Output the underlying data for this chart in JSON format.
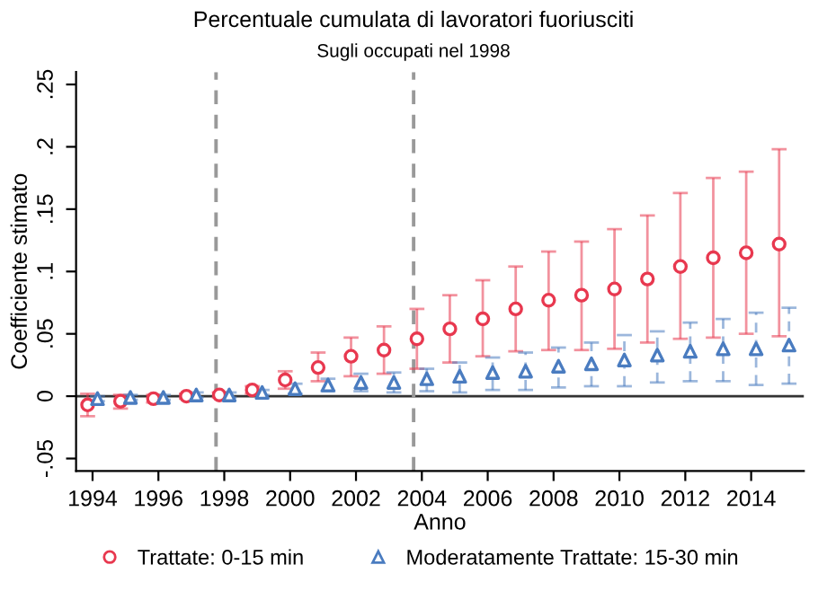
{
  "chart_data": {
    "type": "scatter",
    "title": "Percentuale cumulata di lavoratori fuoriusciti",
    "subtitle": "Sugli occupati nel 1998",
    "xlabel": "Anno",
    "ylabel": "Coefficiente stimato",
    "x": [
      1993.85,
      1994.85,
      1995.85,
      1996.85,
      1997.85,
      1998.85,
      1999.85,
      2000.85,
      2001.85,
      2002.85,
      2003.85,
      2004.85,
      2005.85,
      2006.85,
      2007.85,
      2008.85,
      2009.85,
      2010.85,
      2011.85,
      2012.85,
      2013.85,
      2014.85
    ],
    "series": [
      {
        "name": "Trattate: 0-15 min",
        "color": "#e8384f",
        "marker": "circle",
        "line_style": "solid",
        "values": [
          -0.007,
          -0.004,
          -0.002,
          0.0,
          0.001,
          0.005,
          0.013,
          0.023,
          0.032,
          0.037,
          0.046,
          0.054,
          0.062,
          0.07,
          0.077,
          0.081,
          0.086,
          0.094,
          0.104,
          0.111,
          0.115,
          0.122
        ],
        "errors": [
          [
            -0.016,
            0.002
          ],
          [
            -0.01,
            0.001
          ],
          [
            -0.005,
            0.001
          ],
          [
            -0.002,
            0.002
          ],
          [
            -0.001,
            0.003
          ],
          [
            0.002,
            0.008
          ],
          [
            0.006,
            0.02
          ],
          [
            0.012,
            0.035
          ],
          [
            0.016,
            0.047
          ],
          [
            0.018,
            0.056
          ],
          [
            0.022,
            0.07
          ],
          [
            0.027,
            0.081
          ],
          [
            0.032,
            0.093
          ],
          [
            0.036,
            0.104
          ],
          [
            0.037,
            0.116
          ],
          [
            0.037,
            0.124
          ],
          [
            0.038,
            0.134
          ],
          [
            0.043,
            0.145
          ],
          [
            0.046,
            0.163
          ],
          [
            0.047,
            0.175
          ],
          [
            0.05,
            0.18
          ],
          [
            0.048,
            0.198
          ]
        ]
      },
      {
        "name": "Moderatamente Trattate: 15-30 min",
        "color": "#4a7cc0",
        "x": [
          1994.15,
          1995.15,
          1996.15,
          1997.15,
          1998.15,
          1999.15,
          2000.15,
          2001.15,
          2002.15,
          2003.15,
          2004.15,
          2005.15,
          2006.15,
          2007.15,
          2008.15,
          2009.15,
          2010.15,
          2011.15,
          2012.15,
          2013.15,
          2014.15,
          2015.15
        ],
        "marker": "triangle",
        "line_style": "dashed",
        "values": [
          -0.002,
          -0.001,
          -0.001,
          0.001,
          0.001,
          0.003,
          0.006,
          0.009,
          0.011,
          0.011,
          0.014,
          0.016,
          0.019,
          0.02,
          0.024,
          0.026,
          0.029,
          0.033,
          0.036,
          0.038,
          0.038,
          0.041
        ],
        "errors": [
          [
            -0.004,
            0.0
          ],
          [
            -0.003,
            0.001
          ],
          [
            -0.003,
            0.001
          ],
          [
            -0.001,
            0.003
          ],
          [
            -0.001,
            0.003
          ],
          [
            0.001,
            0.005
          ],
          [
            0.002,
            0.01
          ],
          [
            0.004,
            0.014
          ],
          [
            0.004,
            0.018
          ],
          [
            0.003,
            0.019
          ],
          [
            0.004,
            0.022
          ],
          [
            0.003,
            0.027
          ],
          [
            0.005,
            0.031
          ],
          [
            0.005,
            0.035
          ],
          [
            0.007,
            0.039
          ],
          [
            0.008,
            0.043
          ],
          [
            0.008,
            0.049
          ],
          [
            0.011,
            0.052
          ],
          [
            0.012,
            0.059
          ],
          [
            0.012,
            0.062
          ],
          [
            0.009,
            0.067
          ],
          [
            0.01,
            0.071
          ]
        ]
      }
    ],
    "xlim": [
      1993.5,
      2015.6
    ],
    "xticks": [
      1994,
      1996,
      1998,
      2000,
      2002,
      2004,
      2006,
      2008,
      2010,
      2012,
      2014
    ],
    "ylim": [
      -0.06,
      0.26
    ],
    "yticks": [
      {
        "value": -0.05,
        "label": "-.05"
      },
      {
        "value": 0,
        "label": "0"
      },
      {
        "value": 0.05,
        "label": ".05"
      },
      {
        "value": 0.1,
        "label": ".1"
      },
      {
        "value": 0.15,
        "label": ".15"
      },
      {
        "value": 0.2,
        "label": ".2"
      },
      {
        "value": 0.25,
        "label": ".25"
      }
    ],
    "ref_lines": [
      {
        "axis": "y",
        "value": 0,
        "color": "#333333",
        "line_style": "solid"
      },
      {
        "axis": "x",
        "value": 1997.75,
        "color": "#999999",
        "line_style": "dashed"
      },
      {
        "axis": "x",
        "value": 2003.75,
        "color": "#999999",
        "line_style": "dashed"
      }
    ],
    "grid": false,
    "legend": "bottom"
  }
}
